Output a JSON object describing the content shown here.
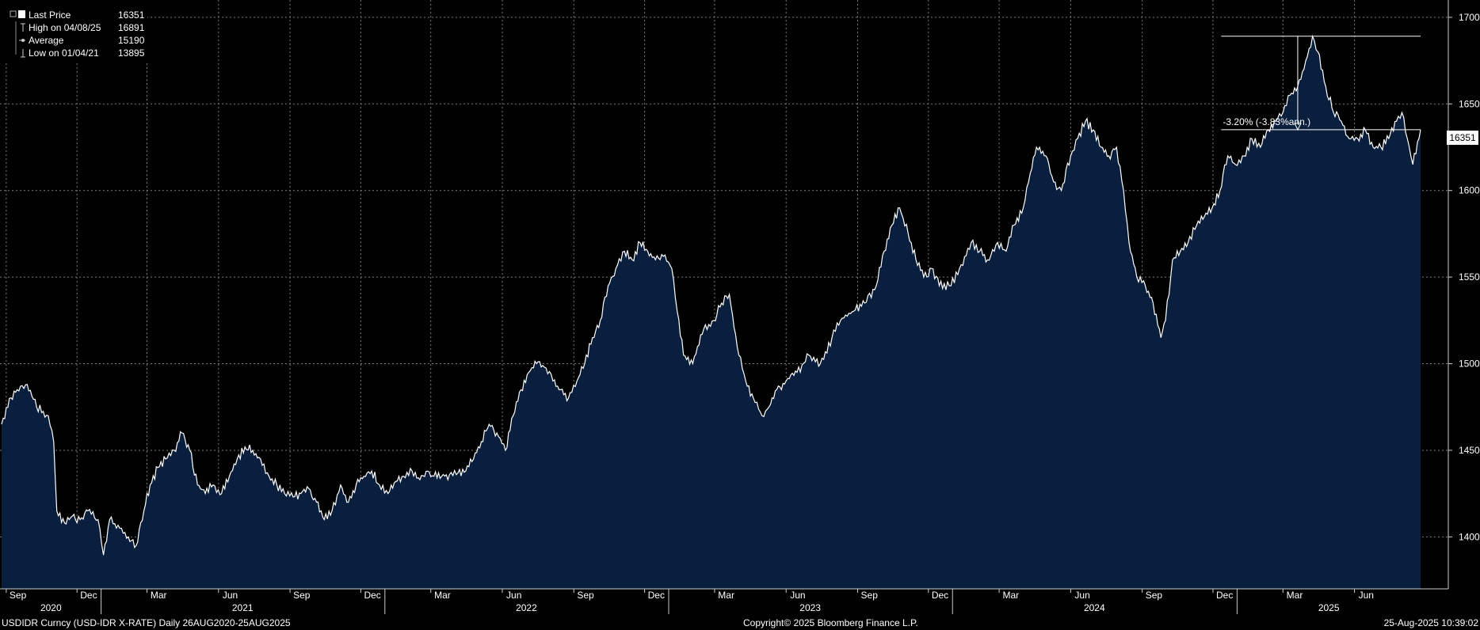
{
  "legend": {
    "last_price_label": "Last Price",
    "last_price_value": "16351",
    "high_label": "High on 04/08/25",
    "high_value": "16891",
    "average_label": "Average",
    "average_value": "15190",
    "low_label": "Low on 01/04/21",
    "low_value": "13895"
  },
  "current_value_label": "16351",
  "annotation": "-3.20% (-3.83%ann.)",
  "footer": {
    "left": "USDIDR Curncy (USD-IDR X-RATE)  Daily 26AUG2020-25AUG2025",
    "center": "Copyright© 2025 Bloomberg Finance L.P.",
    "right": "25-Aug-2025 10:39:02"
  },
  "colors": {
    "background": "#000000",
    "area_fill": "#0a1f3e",
    "line": "#ffffff",
    "grid": "#7a7a7a"
  },
  "chart_data": {
    "type": "area",
    "title": "",
    "xlabel": "",
    "ylabel": "",
    "ylim": [
      13700,
      17100
    ],
    "xlim": [
      "2020-08-26",
      "2025-08-25"
    ],
    "y_ticks": [
      "14000",
      "14500",
      "15000",
      "15500",
      "16000",
      "16500",
      "17000"
    ],
    "x_month_ticks": [
      {
        "date": "2020-09",
        "label": "Sep"
      },
      {
        "date": "2020-12",
        "label": "Dec"
      },
      {
        "date": "2021-03",
        "label": "Mar"
      },
      {
        "date": "2021-06",
        "label": "Jun"
      },
      {
        "date": "2021-09",
        "label": "Sep"
      },
      {
        "date": "2021-12",
        "label": "Dec"
      },
      {
        "date": "2022-03",
        "label": "Mar"
      },
      {
        "date": "2022-06",
        "label": "Jun"
      },
      {
        "date": "2022-09",
        "label": "Sep"
      },
      {
        "date": "2022-12",
        "label": "Dec"
      },
      {
        "date": "2023-03",
        "label": "Mar"
      },
      {
        "date": "2023-06",
        "label": "Jun"
      },
      {
        "date": "2023-09",
        "label": "Sep"
      },
      {
        "date": "2023-12",
        "label": "Dec"
      },
      {
        "date": "2024-03",
        "label": "Mar"
      },
      {
        "date": "2024-06",
        "label": "Jun"
      },
      {
        "date": "2024-09",
        "label": "Sep"
      },
      {
        "date": "2024-12",
        "label": "Dec"
      },
      {
        "date": "2025-03",
        "label": "Mar"
      },
      {
        "date": "2025-06",
        "label": "Jun"
      }
    ],
    "x_year_ticks": [
      "2020",
      "2021",
      "2022",
      "2023",
      "2024",
      "2025"
    ],
    "grid": true,
    "series": [
      {
        "name": "Last Price",
        "points": [
          [
            "2020-08-26",
            14650
          ],
          [
            "2020-09-05",
            14800
          ],
          [
            "2020-09-15",
            14850
          ],
          [
            "2020-09-28",
            14880
          ],
          [
            "2020-10-10",
            14750
          ],
          [
            "2020-10-25",
            14700
          ],
          [
            "2020-11-01",
            14550
          ],
          [
            "2020-11-05",
            14150
          ],
          [
            "2020-11-15",
            14080
          ],
          [
            "2020-11-25",
            14120
          ],
          [
            "2020-12-05",
            14100
          ],
          [
            "2020-12-15",
            14150
          ],
          [
            "2020-12-28",
            14100
          ],
          [
            "2021-01-04",
            13895
          ],
          [
            "2021-01-12",
            14100
          ],
          [
            "2021-01-25",
            14050
          ],
          [
            "2021-02-05",
            14000
          ],
          [
            "2021-02-15",
            13950
          ],
          [
            "2021-02-25",
            14150
          ],
          [
            "2021-03-05",
            14300
          ],
          [
            "2021-03-15",
            14400
          ],
          [
            "2021-03-25",
            14450
          ],
          [
            "2021-04-05",
            14500
          ],
          [
            "2021-04-15",
            14600
          ],
          [
            "2021-04-25",
            14500
          ],
          [
            "2021-05-05",
            14300
          ],
          [
            "2021-05-15",
            14250
          ],
          [
            "2021-05-25",
            14300
          ],
          [
            "2021-06-05",
            14250
          ],
          [
            "2021-06-15",
            14350
          ],
          [
            "2021-06-25",
            14450
          ],
          [
            "2021-07-05",
            14520
          ],
          [
            "2021-07-15",
            14500
          ],
          [
            "2021-07-25",
            14450
          ],
          [
            "2021-08-05",
            14350
          ],
          [
            "2021-08-15",
            14300
          ],
          [
            "2021-08-25",
            14250
          ],
          [
            "2021-09-05",
            14230
          ],
          [
            "2021-09-15",
            14250
          ],
          [
            "2021-09-25",
            14280
          ],
          [
            "2021-10-05",
            14200
          ],
          [
            "2021-10-15",
            14100
          ],
          [
            "2021-10-25",
            14150
          ],
          [
            "2021-11-05",
            14300
          ],
          [
            "2021-11-15",
            14200
          ],
          [
            "2021-11-25",
            14300
          ],
          [
            "2021-12-05",
            14350
          ],
          [
            "2021-12-15",
            14380
          ],
          [
            "2021-12-25",
            14300
          ],
          [
            "2022-01-05",
            14250
          ],
          [
            "2022-01-15",
            14320
          ],
          [
            "2022-01-25",
            14350
          ],
          [
            "2022-02-05",
            14380
          ],
          [
            "2022-02-15",
            14330
          ],
          [
            "2022-02-25",
            14380
          ],
          [
            "2022-03-05",
            14350
          ],
          [
            "2022-03-15",
            14350
          ],
          [
            "2022-03-25",
            14360
          ],
          [
            "2022-04-05",
            14370
          ],
          [
            "2022-04-15",
            14380
          ],
          [
            "2022-04-25",
            14450
          ],
          [
            "2022-05-05",
            14550
          ],
          [
            "2022-05-15",
            14650
          ],
          [
            "2022-05-25",
            14600
          ],
          [
            "2022-06-05",
            14500
          ],
          [
            "2022-06-15",
            14700
          ],
          [
            "2022-06-25",
            14850
          ],
          [
            "2022-07-05",
            14950
          ],
          [
            "2022-07-15",
            15000
          ],
          [
            "2022-07-25",
            14980
          ],
          [
            "2022-08-05",
            14900
          ],
          [
            "2022-08-15",
            14850
          ],
          [
            "2022-08-25",
            14800
          ],
          [
            "2022-09-05",
            14900
          ],
          [
            "2022-09-15",
            15000
          ],
          [
            "2022-09-25",
            15150
          ],
          [
            "2022-10-05",
            15250
          ],
          [
            "2022-10-15",
            15450
          ],
          [
            "2022-10-25",
            15550
          ],
          [
            "2022-11-05",
            15650
          ],
          [
            "2022-11-15",
            15600
          ],
          [
            "2022-11-25",
            15700
          ],
          [
            "2022-12-05",
            15650
          ],
          [
            "2022-12-15",
            15600
          ],
          [
            "2022-12-25",
            15620
          ],
          [
            "2023-01-05",
            15550
          ],
          [
            "2023-01-12",
            15300
          ],
          [
            "2023-01-20",
            15050
          ],
          [
            "2023-02-01",
            15000
          ],
          [
            "2023-02-15",
            15200
          ],
          [
            "2023-02-28",
            15250
          ],
          [
            "2023-03-10",
            15350
          ],
          [
            "2023-03-20",
            15400
          ],
          [
            "2023-03-30",
            15100
          ],
          [
            "2023-04-10",
            14900
          ],
          [
            "2023-04-20",
            14800
          ],
          [
            "2023-05-01",
            14700
          ],
          [
            "2023-05-10",
            14750
          ],
          [
            "2023-05-20",
            14850
          ],
          [
            "2023-06-01",
            14900
          ],
          [
            "2023-06-15",
            14950
          ],
          [
            "2023-06-30",
            15050
          ],
          [
            "2023-07-15",
            15000
          ],
          [
            "2023-07-30",
            15150
          ],
          [
            "2023-08-10",
            15250
          ],
          [
            "2023-08-25",
            15300
          ],
          [
            "2023-09-10",
            15350
          ],
          [
            "2023-09-25",
            15450
          ],
          [
            "2023-10-05",
            15650
          ],
          [
            "2023-10-15",
            15800
          ],
          [
            "2023-10-25",
            15900
          ],
          [
            "2023-11-05",
            15750
          ],
          [
            "2023-11-15",
            15600
          ],
          [
            "2023-11-25",
            15500
          ],
          [
            "2023-12-05",
            15550
          ],
          [
            "2023-12-15",
            15450
          ],
          [
            "2023-12-30",
            15450
          ],
          [
            "2024-01-10",
            15550
          ],
          [
            "2024-01-25",
            15700
          ],
          [
            "2024-02-05",
            15650
          ],
          [
            "2024-02-15",
            15600
          ],
          [
            "2024-02-28",
            15700
          ],
          [
            "2024-03-10",
            15650
          ],
          [
            "2024-03-20",
            15800
          ],
          [
            "2024-04-01",
            15900
          ],
          [
            "2024-04-10",
            16100
          ],
          [
            "2024-04-18",
            16250
          ],
          [
            "2024-04-30",
            16200
          ],
          [
            "2024-05-10",
            16050
          ],
          [
            "2024-05-20",
            16000
          ],
          [
            "2024-06-01",
            16200
          ],
          [
            "2024-06-10",
            16300
          ],
          [
            "2024-06-20",
            16400
          ],
          [
            "2024-06-30",
            16350
          ],
          [
            "2024-07-10",
            16250
          ],
          [
            "2024-07-20",
            16200
          ],
          [
            "2024-07-30",
            16250
          ],
          [
            "2024-08-08",
            16000
          ],
          [
            "2024-08-15",
            15700
          ],
          [
            "2024-08-25",
            15500
          ],
          [
            "2024-09-05",
            15450
          ],
          [
            "2024-09-15",
            15350
          ],
          [
            "2024-09-25",
            15150
          ],
          [
            "2024-10-01",
            15250
          ],
          [
            "2024-10-10",
            15600
          ],
          [
            "2024-10-20",
            15650
          ],
          [
            "2024-10-30",
            15700
          ],
          [
            "2024-11-10",
            15800
          ],
          [
            "2024-11-20",
            15850
          ],
          [
            "2024-11-30",
            15900
          ],
          [
            "2024-12-10",
            16000
          ],
          [
            "2024-12-20",
            16200
          ],
          [
            "2024-12-30",
            16150
          ],
          [
            "2025-01-10",
            16200
          ],
          [
            "2025-01-20",
            16300
          ],
          [
            "2025-01-31",
            16250
          ],
          [
            "2025-02-10",
            16350
          ],
          [
            "2025-02-20",
            16400
          ],
          [
            "2025-03-01",
            16450
          ],
          [
            "2025-03-10",
            16550
          ],
          [
            "2025-03-20",
            16600
          ],
          [
            "2025-03-28",
            16700
          ],
          [
            "2025-04-08",
            16891
          ],
          [
            "2025-04-15",
            16800
          ],
          [
            "2025-04-25",
            16600
          ],
          [
            "2025-05-05",
            16450
          ],
          [
            "2025-05-15",
            16400
          ],
          [
            "2025-05-25",
            16300
          ],
          [
            "2025-06-05",
            16300
          ],
          [
            "2025-06-15",
            16350
          ],
          [
            "2025-06-25",
            16250
          ],
          [
            "2025-07-05",
            16250
          ],
          [
            "2025-07-15",
            16300
          ],
          [
            "2025-07-25",
            16400
          ],
          [
            "2025-08-01",
            16450
          ],
          [
            "2025-08-08",
            16300
          ],
          [
            "2025-08-15",
            16150
          ],
          [
            "2025-08-25",
            16351
          ]
        ]
      }
    ],
    "reference_lines": [
      {
        "kind": "high",
        "value": 16891,
        "from": "2025-01-01",
        "to": "2025-08-25"
      },
      {
        "kind": "last",
        "value": 16351,
        "from": "2025-01-01",
        "to": "2025-08-25"
      }
    ],
    "annotation_anchor": {
      "date": "2025-01-01",
      "value": 16351
    }
  }
}
